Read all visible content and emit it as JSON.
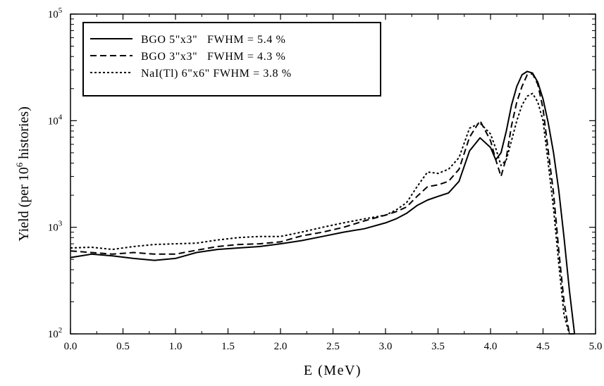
{
  "chart_data": {
    "type": "line",
    "title": "",
    "xlabel": "E (MeV)",
    "ylabel_prefix": "Yield (per 10",
    "ylabel_exp": "6",
    "ylabel_suffix": " histories)",
    "x_scale": "linear",
    "y_scale": "log",
    "xlim": [
      0.0,
      5.0
    ],
    "ylim": [
      100,
      100000
    ],
    "x_ticks": [
      "0.0",
      "0.5",
      "1.0",
      "1.5",
      "2.0",
      "2.5",
      "3.0",
      "3.5",
      "4.0",
      "4.5",
      "5.0"
    ],
    "y_ticks": [
      {
        "base": "10",
        "exp": "2",
        "value": 100
      },
      {
        "base": "10",
        "exp": "3",
        "value": 1000
      },
      {
        "base": "10",
        "exp": "4",
        "value": 10000
      },
      {
        "base": "10",
        "exp": "5",
        "value": 100000
      }
    ],
    "grid": false,
    "legend_position": "top-left",
    "x": [
      0.0,
      0.2,
      0.4,
      0.6,
      0.8,
      1.0,
      1.2,
      1.4,
      1.6,
      1.8,
      2.0,
      2.2,
      2.4,
      2.6,
      2.8,
      3.0,
      3.1,
      3.2,
      3.3,
      3.4,
      3.5,
      3.6,
      3.7,
      3.8,
      3.9,
      4.0,
      4.05,
      4.1,
      4.15,
      4.2,
      4.25,
      4.3,
      4.35,
      4.4,
      4.45,
      4.5,
      4.55,
      4.6,
      4.65,
      4.7,
      4.75,
      4.8
    ],
    "series": [
      {
        "name": "BGO 5\"x3\"   FWHM = 5.4 %",
        "style": "solid",
        "values": [
          520,
          560,
          540,
          510,
          490,
          510,
          580,
          620,
          640,
          660,
          700,
          750,
          820,
          900,
          970,
          1100,
          1200,
          1350,
          1600,
          1800,
          1950,
          2100,
          2700,
          5200,
          6900,
          5600,
          4300,
          5000,
          8000,
          14000,
          21000,
          27000,
          29000,
          28000,
          23000,
          16000,
          9500,
          5000,
          2200,
          800,
          260,
          95
        ]
      },
      {
        "name": "BGO 3\"x3\"   FWHM = 4.3 %",
        "style": "dashed",
        "values": [
          600,
          580,
          560,
          580,
          560,
          560,
          610,
          660,
          690,
          700,
          730,
          830,
          900,
          1000,
          1150,
          1300,
          1400,
          1550,
          1950,
          2400,
          2500,
          2700,
          3500,
          7000,
          10000,
          6500,
          4300,
          3000,
          4500,
          9000,
          15000,
          21000,
          27000,
          27500,
          22000,
          13000,
          5200,
          2100,
          600,
          200,
          100,
          100
        ]
      },
      {
        "name": "NaI(Tl) 6\"x6\" FWHM = 3.8 %",
        "style": "dotted",
        "values": [
          640,
          650,
          620,
          660,
          690,
          700,
          710,
          760,
          800,
          820,
          820,
          900,
          1000,
          1100,
          1200,
          1300,
          1450,
          1700,
          2400,
          3300,
          3200,
          3500,
          4500,
          8500,
          9500,
          7500,
          5500,
          3800,
          4300,
          6500,
          10000,
          14000,
          17000,
          18000,
          15000,
          10000,
          4000,
          1500,
          450,
          150,
          100,
          100
        ]
      }
    ]
  }
}
